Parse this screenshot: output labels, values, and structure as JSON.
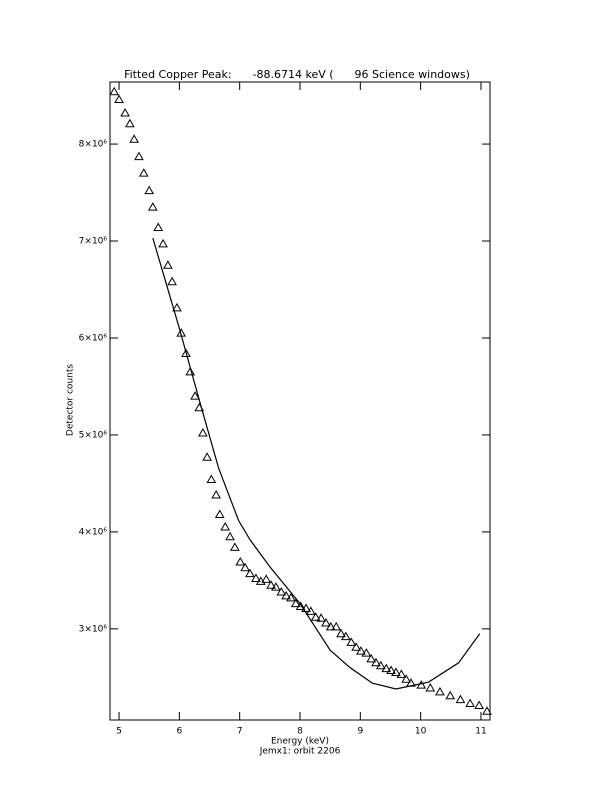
{
  "chart_data": {
    "type": "scatter",
    "title": "Fitted Copper Peak:      -88.6714 keV (      96 Science windows)",
    "x_label": "Energy (keV)",
    "y_label": "Detector counts",
    "footer": "Jemx1: orbit 2206",
    "xlim": [
      4.85,
      11.15
    ],
    "ylim": [
      2060000,
      8640000
    ],
    "xticks": [
      5,
      6,
      7,
      8,
      9,
      10,
      11
    ],
    "yticks": [
      {
        "value": 3000000,
        "label": "3×10⁶"
      },
      {
        "value": 4000000,
        "label": "4×10⁶"
      },
      {
        "value": 5000000,
        "label": "5×10⁶"
      },
      {
        "value": 6000000,
        "label": "6×10⁶"
      },
      {
        "value": 7000000,
        "label": "7×10⁶"
      },
      {
        "value": 8000000,
        "label": "8×10⁶"
      }
    ],
    "series": [
      {
        "type": "scatter",
        "marker": "triangle",
        "color": "#000000",
        "x": [
          4.92,
          5.0,
          5.1,
          5.18,
          5.25,
          5.33,
          5.41,
          5.5,
          5.56,
          5.65,
          5.73,
          5.81,
          5.88,
          5.96,
          6.03,
          6.11,
          6.18,
          6.26,
          6.33,
          6.39,
          6.46,
          6.53,
          6.61,
          6.67,
          6.76,
          6.84,
          6.92,
          7.01,
          7.09,
          7.17,
          7.27,
          7.35,
          7.44,
          7.52,
          7.6,
          7.69,
          7.77,
          7.85,
          7.93,
          8.01,
          8.1,
          8.18,
          8.26,
          8.35,
          8.43,
          8.51,
          8.6,
          8.68,
          8.76,
          8.85,
          8.93,
          9.01,
          9.1,
          9.18,
          9.26,
          9.34,
          9.43,
          9.51,
          9.59,
          9.68,
          9.76,
          9.84,
          10.01,
          10.16,
          10.32,
          10.49,
          10.66,
          10.82,
          10.97,
          11.1
        ],
        "values": [
          8540000,
          8460000,
          8320000,
          8210000,
          8050000,
          7870000,
          7700000,
          7520000,
          7350000,
          7140000,
          6970000,
          6750000,
          6580000,
          6310000,
          6050000,
          5840000,
          5650000,
          5400000,
          5280000,
          5020000,
          4770000,
          4540000,
          4380000,
          4180000,
          4050000,
          3950000,
          3840000,
          3690000,
          3630000,
          3570000,
          3520000,
          3490000,
          3510000,
          3450000,
          3430000,
          3380000,
          3340000,
          3320000,
          3260000,
          3230000,
          3210000,
          3180000,
          3120000,
          3110000,
          3060000,
          3020000,
          3020000,
          2950000,
          2920000,
          2860000,
          2810000,
          2770000,
          2750000,
          2690000,
          2650000,
          2620000,
          2590000,
          2570000,
          2550000,
          2530000,
          2480000,
          2440000,
          2420000,
          2390000,
          2350000,
          2310000,
          2270000,
          2230000,
          2210000,
          2150000
        ]
      },
      {
        "type": "line",
        "color": "#000000",
        "x": [
          5.56,
          6.0,
          6.33,
          6.65,
          6.98,
          7.17,
          7.5,
          8.0,
          8.5,
          8.83,
          9.2,
          9.59,
          10.13,
          10.63,
          10.98
        ],
        "values": [
          7030000,
          6100000,
          5360000,
          4660000,
          4120000,
          3920000,
          3640000,
          3260000,
          2780000,
          2600000,
          2440000,
          2380000,
          2450000,
          2650000,
          2950000
        ]
      }
    ]
  }
}
